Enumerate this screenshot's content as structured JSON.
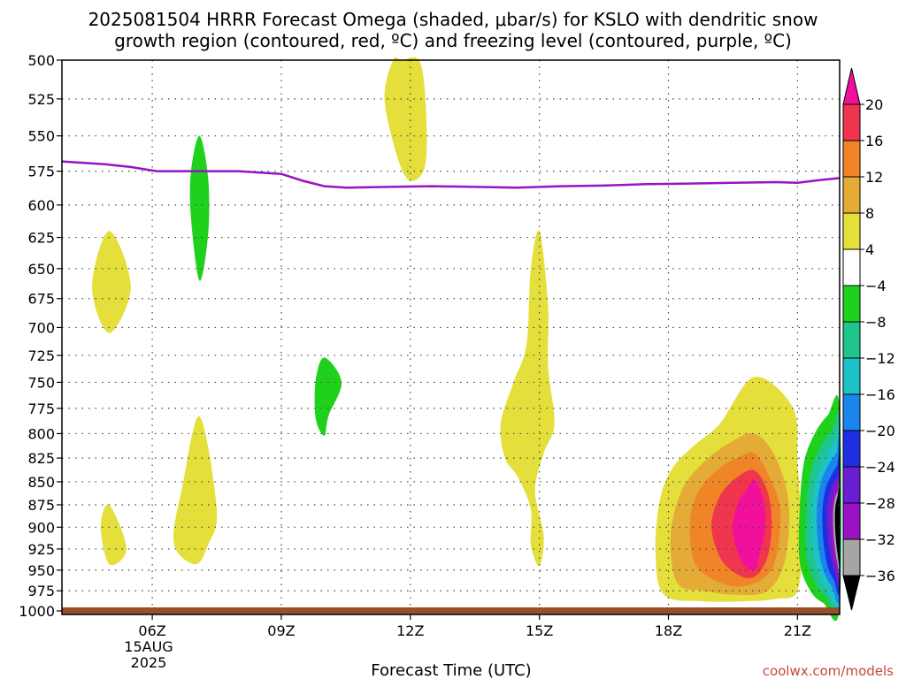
{
  "chart_data": {
    "type": "contour",
    "title_line1": "2025081504 HRRR Forecast Omega (shaded, μbar/s) for KSLO with dendritic snow",
    "title_line2": "growth region (contoured, red, ºC) and freezing level (contoured, purple, ºC)",
    "xlabel": "Forecast Time (UTC)",
    "credit": "coolwx.com/models",
    "x_ticks": [
      {
        "hour": 6,
        "label": "06Z"
      },
      {
        "hour": 9,
        "label": "09Z"
      },
      {
        "hour": 12,
        "label": "12Z"
      },
      {
        "hour": 15,
        "label": "15Z"
      },
      {
        "hour": 18,
        "label": "18Z"
      },
      {
        "hour": 21,
        "label": "21Z"
      }
    ],
    "date_label_line1": "15AUG",
    "date_label_line2": "2025",
    "xlim": [
      3.9,
      21.98
    ],
    "y_ticks": [
      500,
      525,
      550,
      575,
      600,
      625,
      650,
      675,
      700,
      725,
      750,
      775,
      800,
      825,
      850,
      875,
      900,
      925,
      950,
      975,
      1000
    ],
    "ylim": [
      500,
      1000
    ],
    "y_scale": "log",
    "grid": true,
    "colorbar": {
      "bounds": [
        -36,
        -32,
        -28,
        -24,
        -20,
        -16,
        -12,
        -8,
        -4,
        4,
        8,
        12,
        16,
        20
      ],
      "labels": [
        "20",
        "16",
        "12",
        "8",
        "4",
        "−4",
        "−8",
        "−12",
        "−16",
        "−20",
        "−24",
        "−28",
        "−32",
        "−36"
      ],
      "colors": {
        "gt20": "#f20f9b",
        "16_20": "#f0354e",
        "12_16": "#ef8527",
        "8_12": "#e4ac37",
        "4_8": "#e5df3c",
        "-4_4": "#ffffff",
        "-8_-4": "#1fd11c",
        "-12_-8": "#1ec58c",
        "-16_-12": "#1ec3c7",
        "-20_-16": "#1a85ec",
        "-24_-20": "#1e2fe3",
        "-28_-24": "#6a1ed4",
        "-32_-28": "#9a12c4",
        "-36_-32": "#a5a5a5",
        "lt-36": "#000000"
      }
    },
    "omega_regions": [
      {
        "name": "yellow-5z-upper",
        "color": "#e5df3c",
        "points": [
          [
            5.0,
            620
          ],
          [
            5.5,
            665
          ],
          [
            5.0,
            705
          ],
          [
            4.6,
            665
          ]
        ]
      },
      {
        "name": "yellow-5z-lower",
        "color": "#e5df3c",
        "points": [
          [
            5.0,
            875
          ],
          [
            5.4,
            925
          ],
          [
            5.0,
            943
          ],
          [
            4.8,
            900
          ]
        ]
      },
      {
        "name": "green-7z",
        "color": "#1fd11c",
        "points": [
          [
            7.1,
            550
          ],
          [
            7.3,
            580
          ],
          [
            7.3,
            622
          ],
          [
            7.1,
            660
          ],
          [
            6.9,
            610
          ],
          [
            6.9,
            575
          ]
        ]
      },
      {
        "name": "yellow-7z-lower",
        "color": "#e5df3c",
        "points": [
          [
            7.1,
            783
          ],
          [
            7.5,
            880
          ],
          [
            7.3,
            920
          ],
          [
            7.0,
            943
          ],
          [
            6.5,
            918
          ],
          [
            6.7,
            855
          ]
        ]
      },
      {
        "name": "green-10z",
        "color": "#1fd11c",
        "points": [
          [
            10.0,
            727
          ],
          [
            10.4,
            750
          ],
          [
            10.1,
            782
          ],
          [
            10.0,
            802
          ],
          [
            9.8,
            785
          ],
          [
            9.8,
            748
          ]
        ]
      },
      {
        "name": "yellow-12z",
        "color": "#e5df3c",
        "points": [
          [
            11.8,
            500
          ],
          [
            12.2,
            500
          ],
          [
            12.35,
            525
          ],
          [
            12.35,
            570
          ],
          [
            12.0,
            582
          ],
          [
            11.7,
            565
          ],
          [
            11.4,
            525
          ],
          [
            11.6,
            500
          ]
        ]
      },
      {
        "name": "yellow-15z",
        "color": "#e5df3c",
        "points": [
          [
            15.0,
            620
          ],
          [
            15.2,
            680
          ],
          [
            15.2,
            735
          ],
          [
            15.35,
            790
          ],
          [
            15.1,
            820
          ],
          [
            14.9,
            860
          ],
          [
            15.1,
            910
          ],
          [
            15.0,
            945
          ],
          [
            14.8,
            920
          ],
          [
            14.8,
            880
          ],
          [
            14.5,
            845
          ],
          [
            14.2,
            825
          ],
          [
            14.1,
            790
          ],
          [
            14.4,
            750
          ],
          [
            14.7,
            715
          ],
          [
            14.8,
            650
          ]
        ]
      },
      {
        "name": "pos-18z-4",
        "color": "#e5df3c",
        "points": [
          [
            20.0,
            745
          ],
          [
            20.9,
            775
          ],
          [
            21.0,
            830
          ],
          [
            21.1,
            910
          ],
          [
            21.0,
            975
          ],
          [
            20.5,
            985
          ],
          [
            19.8,
            988
          ],
          [
            18.8,
            988
          ],
          [
            17.9,
            980
          ],
          [
            17.7,
            930
          ],
          [
            17.8,
            870
          ],
          [
            18.1,
            835
          ],
          [
            18.6,
            812
          ],
          [
            19.2,
            790
          ]
        ]
      },
      {
        "name": "pos-18z-8",
        "color": "#e4ac37",
        "points": [
          [
            20.0,
            800
          ],
          [
            20.5,
            825
          ],
          [
            20.8,
            875
          ],
          [
            20.7,
            940
          ],
          [
            20.3,
            975
          ],
          [
            19.6,
            980
          ],
          [
            18.8,
            975
          ],
          [
            18.2,
            965
          ],
          [
            18.05,
            910
          ],
          [
            18.3,
            860
          ],
          [
            18.8,
            830
          ],
          [
            19.4,
            810
          ]
        ]
      },
      {
        "name": "pos-18z-12",
        "color": "#ef8527",
        "points": [
          [
            20.0,
            820
          ],
          [
            20.35,
            845
          ],
          [
            20.6,
            880
          ],
          [
            20.5,
            935
          ],
          [
            20.2,
            960
          ],
          [
            19.6,
            970
          ],
          [
            19.0,
            960
          ],
          [
            18.6,
            940
          ],
          [
            18.5,
            895
          ],
          [
            18.7,
            860
          ],
          [
            19.2,
            835
          ],
          [
            19.6,
            825
          ]
        ]
      },
      {
        "name": "pos-18z-16",
        "color": "#f0354e",
        "points": [
          [
            20.0,
            838
          ],
          [
            20.3,
            860
          ],
          [
            20.4,
            895
          ],
          [
            20.3,
            935
          ],
          [
            20.0,
            958
          ],
          [
            19.6,
            955
          ],
          [
            19.2,
            935
          ],
          [
            19.0,
            898
          ],
          [
            19.2,
            865
          ],
          [
            19.6,
            845
          ]
        ]
      },
      {
        "name": "pos-18z-20",
        "color": "#f20f9b",
        "points": [
          [
            20.0,
            848
          ],
          [
            20.2,
            870
          ],
          [
            20.25,
            900
          ],
          [
            20.1,
            935
          ],
          [
            20.0,
            950
          ],
          [
            19.7,
            940
          ],
          [
            19.5,
            905
          ],
          [
            19.6,
            875
          ],
          [
            19.8,
            860
          ]
        ]
      },
      {
        "name": "neg-21z-8",
        "color": "#1fd11c",
        "points": [
          [
            21.98,
            775
          ],
          [
            21.98,
            995
          ],
          [
            21.6,
            990
          ],
          [
            21.3,
            975
          ],
          [
            21.05,
            940
          ],
          [
            21.05,
            880
          ],
          [
            21.15,
            830
          ],
          [
            21.4,
            800
          ],
          [
            21.7,
            782
          ]
        ]
      },
      {
        "name": "neg-21z-12",
        "color": "#1ec58c",
        "points": [
          [
            21.98,
            790
          ],
          [
            21.98,
            990
          ],
          [
            21.65,
            982
          ],
          [
            21.4,
            965
          ],
          [
            21.2,
            930
          ],
          [
            21.2,
            880
          ],
          [
            21.3,
            840
          ],
          [
            21.55,
            812
          ],
          [
            21.8,
            797
          ]
        ]
      },
      {
        "name": "neg-21z-16",
        "color": "#1ec3c7",
        "points": [
          [
            21.98,
            800
          ],
          [
            21.98,
            985
          ],
          [
            21.7,
            975
          ],
          [
            21.5,
            955
          ],
          [
            21.35,
            925
          ],
          [
            21.33,
            880
          ],
          [
            21.45,
            845
          ],
          [
            21.65,
            822
          ],
          [
            21.85,
            808
          ]
        ]
      },
      {
        "name": "neg-21z-20",
        "color": "#1a85ec",
        "points": [
          [
            21.98,
            812
          ],
          [
            21.98,
            978
          ],
          [
            21.8,
            970
          ],
          [
            21.6,
            950
          ],
          [
            21.48,
            920
          ],
          [
            21.45,
            880
          ],
          [
            21.55,
            850
          ],
          [
            21.72,
            832
          ],
          [
            21.9,
            820
          ]
        ]
      },
      {
        "name": "neg-21z-24",
        "color": "#1e2fe3",
        "points": [
          [
            21.98,
            825
          ],
          [
            21.98,
            970
          ],
          [
            21.85,
            962
          ],
          [
            21.7,
            945
          ],
          [
            21.6,
            915
          ],
          [
            21.58,
            882
          ],
          [
            21.65,
            858
          ],
          [
            21.8,
            842
          ],
          [
            21.92,
            833
          ]
        ]
      },
      {
        "name": "neg-21z-28",
        "color": "#6a1ed4",
        "points": [
          [
            21.98,
            835
          ],
          [
            21.98,
            962
          ],
          [
            21.88,
            955
          ],
          [
            21.78,
            935
          ],
          [
            21.7,
            910
          ],
          [
            21.68,
            882
          ],
          [
            21.75,
            862
          ],
          [
            21.85,
            850
          ],
          [
            21.95,
            842
          ]
        ]
      },
      {
        "name": "neg-21z-32",
        "color": "#9a12c4",
        "points": [
          [
            21.98,
            845
          ],
          [
            21.98,
            955
          ],
          [
            21.9,
            948
          ],
          [
            21.82,
            930
          ],
          [
            21.78,
            905
          ],
          [
            21.77,
            882
          ],
          [
            21.82,
            866
          ],
          [
            21.9,
            856
          ]
        ]
      },
      {
        "name": "neg-21z-36",
        "color": "#a5a5a5",
        "points": [
          [
            21.98,
            853
          ],
          [
            21.98,
            948
          ],
          [
            21.92,
            940
          ],
          [
            21.86,
            920
          ],
          [
            21.83,
            900
          ],
          [
            21.83,
            882
          ],
          [
            21.87,
            868
          ],
          [
            21.94,
            860
          ]
        ]
      },
      {
        "name": "neg-21z-black",
        "color": "#000000",
        "points": [
          [
            21.98,
            860
          ],
          [
            21.98,
            940
          ],
          [
            21.93,
            930
          ],
          [
            21.89,
            912
          ],
          [
            21.87,
            895
          ],
          [
            21.88,
            878
          ],
          [
            21.93,
            866
          ]
        ]
      }
    ],
    "freezing_level": {
      "color": "#9a12c4",
      "points": [
        [
          3.9,
          568
        ],
        [
          4.9,
          570
        ],
        [
          5.5,
          572
        ],
        [
          6.1,
          575
        ],
        [
          7.0,
          575
        ],
        [
          8.0,
          575
        ],
        [
          9.0,
          577
        ],
        [
          9.5,
          582
        ],
        [
          10.0,
          586
        ],
        [
          10.5,
          587
        ],
        [
          11.5,
          586.5
        ],
        [
          12.5,
          586
        ],
        [
          13.5,
          586.5
        ],
        [
          14.5,
          587
        ],
        [
          15.5,
          586
        ],
        [
          16.5,
          585.5
        ],
        [
          17.5,
          584.5
        ],
        [
          18.5,
          584
        ],
        [
          19.5,
          583.5
        ],
        [
          20.5,
          583
        ],
        [
          21.0,
          583.5
        ],
        [
          21.5,
          581.5
        ],
        [
          21.98,
          580
        ]
      ]
    },
    "surface_color": "#99502a"
  }
}
